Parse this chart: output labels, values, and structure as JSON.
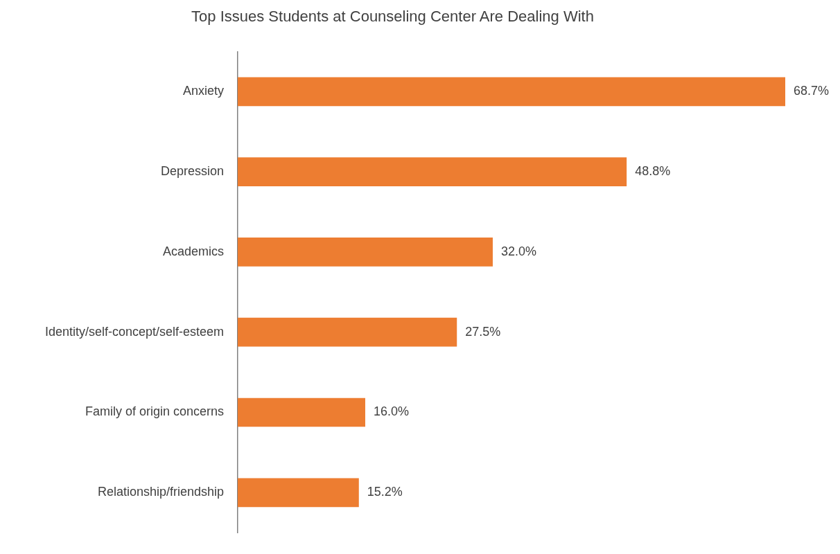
{
  "chart_data": {
    "type": "bar",
    "orientation": "horizontal",
    "title": "Top Issues Students at Counseling Center Are Dealing With",
    "categories": [
      "Anxiety",
      "Depression",
      "Academics",
      "Identity/self-concept/self-esteem",
      "Family of origin concerns",
      "Relationship/friendship"
    ],
    "values": [
      68.7,
      48.8,
      32.0,
      27.5,
      16.0,
      15.2
    ],
    "value_labels": [
      "68.7%",
      "48.8%",
      "32.0%",
      "27.5%",
      "16.0%",
      "15.2%"
    ],
    "color": "#ed7d31"
  }
}
